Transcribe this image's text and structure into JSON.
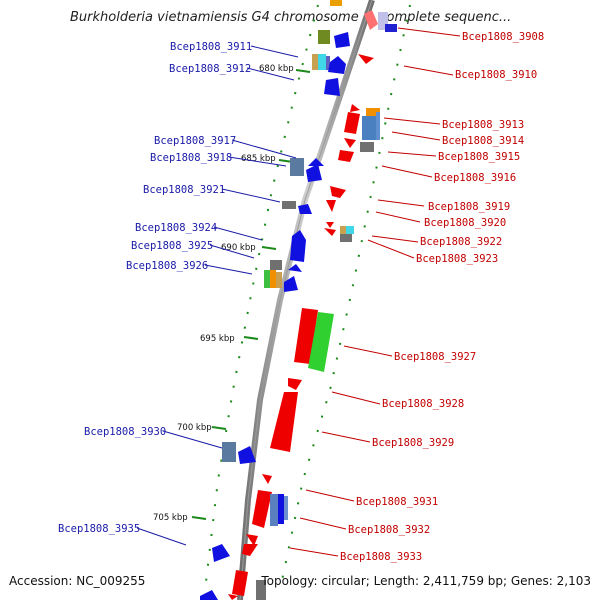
{
  "title": "Burkholderia vietnamiensis G4 chromosome 2, complete sequenc...",
  "footer": {
    "accession": "Accession: NC_009255",
    "summary": "Topology: circular; Length: 2,411,759 bp; Genes: 2,103"
  },
  "colors": {
    "backbone": "#8a8a8a",
    "tick": "#1b8a1b",
    "left_label": "#1a1aa8",
    "right_label": "#c20000"
  },
  "kbp_marks": [
    "680 kbp",
    "685 kbp",
    "690 kbp",
    "695 kbp",
    "700 kbp",
    "705 kbp"
  ],
  "left_labels": [
    "Bcep1808_3911",
    "Bcep1808_3912",
    "Bcep1808_3917",
    "Bcep1808_3918",
    "Bcep1808_3921",
    "Bcep1808_3924",
    "Bcep1808_3925",
    "Bcep1808_3926",
    "Bcep1808_3930",
    "Bcep1808_3935"
  ],
  "right_labels": [
    "Bcep1808_3908",
    "Bcep1808_3910",
    "Bcep1808_3913",
    "Bcep1808_3914",
    "Bcep1808_3915",
    "Bcep1808_3916",
    "Bcep1808_3919",
    "Bcep1808_3920",
    "Bcep1808_3922",
    "Bcep1808_3923",
    "Bcep1808_3927",
    "Bcep1808_3928",
    "Bcep1808_3929",
    "Bcep1808_3931",
    "Bcep1808_3932",
    "Bcep1808_3933"
  ]
}
